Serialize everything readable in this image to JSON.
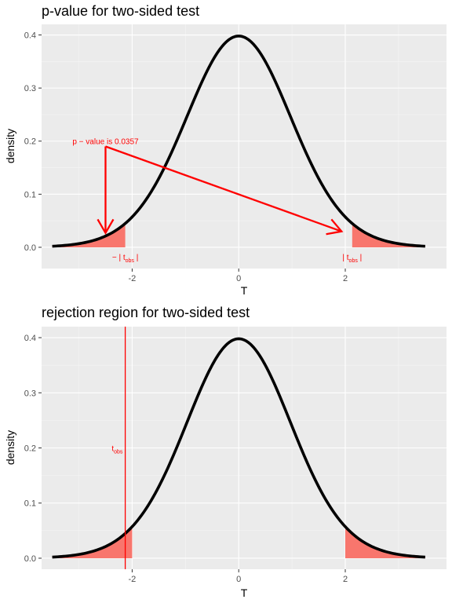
{
  "chart_data": [
    {
      "type": "line",
      "title": "p-value for two-sided test",
      "xlabel": "T",
      "ylabel": "density",
      "xlim": [
        -3.7,
        3.9
      ],
      "ylim": [
        -0.04,
        0.42
      ],
      "x_ticks": [
        -2,
        0,
        2
      ],
      "y_ticks": [
        0.0,
        0.1,
        0.2,
        0.3,
        0.4
      ],
      "x_tick_labels": [
        "-2",
        "0",
        "2"
      ],
      "y_tick_labels": [
        "0.0",
        "0.1",
        "0.2",
        "0.3",
        "0.4"
      ],
      "grid": true,
      "curve": {
        "distribution": "t",
        "df": 30,
        "x_range": [
          -3.5,
          3.5
        ],
        "peak": 0.398,
        "color": "#000000"
      },
      "shaded_regions": [
        {
          "x_from": -3.5,
          "x_to": -2.13,
          "color": "#f8766d"
        },
        {
          "x_from": 2.13,
          "x_to": 3.5,
          "color": "#f8766d"
        }
      ],
      "annotations": [
        {
          "text": "p − value is 0.0357",
          "x": -2.5,
          "y": 0.2,
          "color": "#ff0000"
        },
        {
          "main": "− | t",
          "sub": "obs",
          "tail": " |",
          "x": -2.13,
          "y": -0.018
        },
        {
          "main": "| t",
          "sub": "obs",
          "tail": " |",
          "x": 2.13,
          "y": -0.018
        }
      ],
      "arrows": [
        {
          "from": [
            -2.5,
            0.19
          ],
          "to": [
            -2.5,
            0.027
          ],
          "color": "#ff0000"
        },
        {
          "from": [
            -2.5,
            0.19
          ],
          "to": [
            1.93,
            0.03
          ],
          "color": "#ff0000"
        }
      ]
    },
    {
      "type": "line",
      "title": "rejection region for two-sided test",
      "xlabel": "T",
      "ylabel": "density",
      "xlim": [
        -3.7,
        3.9
      ],
      "ylim": [
        -0.02,
        0.42
      ],
      "x_ticks": [
        -2,
        0,
        2
      ],
      "y_ticks": [
        0.0,
        0.1,
        0.2,
        0.3,
        0.4
      ],
      "x_tick_labels": [
        "-2",
        "0",
        "2"
      ],
      "y_tick_labels": [
        "0.0",
        "0.1",
        "0.2",
        "0.3",
        "0.4"
      ],
      "grid": true,
      "curve": {
        "distribution": "t",
        "df": 30,
        "x_range": [
          -3.5,
          3.5
        ],
        "peak": 0.398,
        "color": "#000000"
      },
      "shaded_regions": [
        {
          "x_from": -3.5,
          "x_to": -2.0,
          "color": "#f8766d"
        },
        {
          "x_from": 2.0,
          "x_to": 3.5,
          "color": "#f8766d"
        }
      ],
      "vline": {
        "x": -2.13,
        "color": "#ff0000"
      },
      "annotations": [
        {
          "main": "t",
          "sub": "obs",
          "tail": "",
          "x": -2.28,
          "y": 0.2
        }
      ]
    }
  ]
}
